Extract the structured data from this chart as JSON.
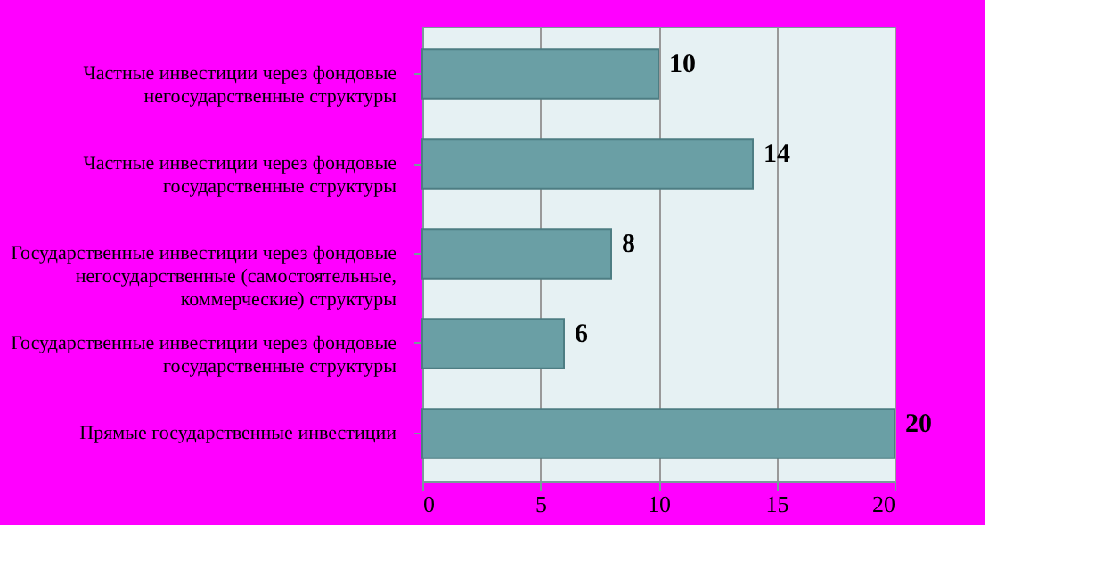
{
  "chart_data": {
    "type": "bar",
    "orientation": "horizontal",
    "categories": [
      "Частные инвестиции через фондовые негосударственные структуры",
      "Частные инвестиции через фондовые государственные структуры",
      "Государственные инвестиции через фондовые негосударственные (самостоятельные, коммерческие) структуры",
      "Государственные инвестиции через фондовые государственные структуры",
      "Прямые государственные инвестиции"
    ],
    "values": [
      10,
      14,
      8,
      6,
      20
    ],
    "color": "#6a9fa5",
    "xlim": [
      0,
      20
    ],
    "xticks": [
      0,
      5,
      10,
      15,
      20
    ],
    "grid": "x",
    "data_labels": true
  }
}
